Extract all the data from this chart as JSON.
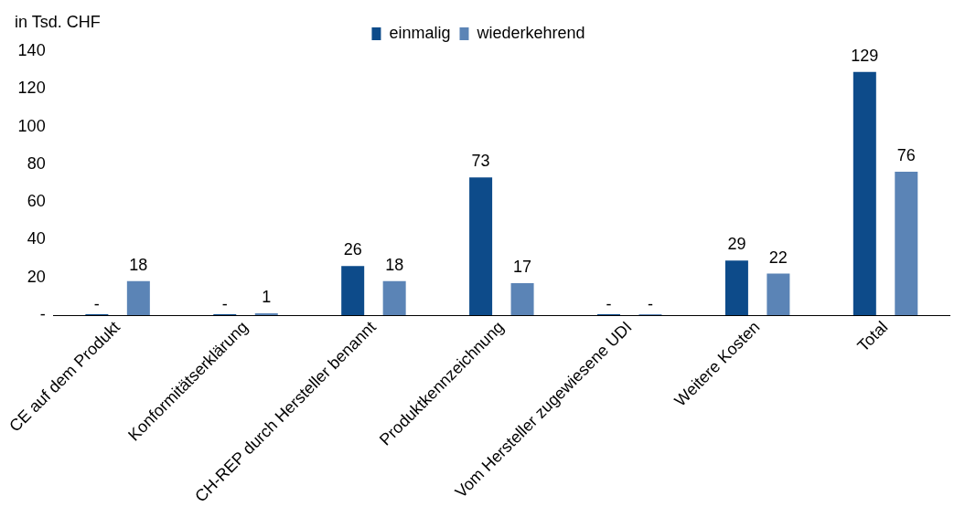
{
  "chart_data": {
    "type": "bar",
    "ylabel": "in Tsd. CHF",
    "categories": [
      "CE auf dem Produkt",
      "Konformitätserklärung",
      "CH-REP durch Hersteller benannt",
      "Produktkennzeichnung",
      "Vom Hersteller zugewiesene UDI",
      "Weitere Kosten",
      "Total"
    ],
    "series": [
      {
        "name": "einmalig",
        "color": "#0d4b8a",
        "values": [
          0,
          0,
          26,
          73,
          0,
          29,
          129
        ],
        "value_labels": [
          "-",
          "-",
          "26",
          "73",
          "-",
          "29",
          "129"
        ]
      },
      {
        "name": "wiederkehrend",
        "color": "#5b84b6",
        "values": [
          18,
          1,
          18,
          17,
          0,
          22,
          76
        ],
        "value_labels": [
          "18",
          "1",
          "18",
          "17",
          "-",
          "22",
          "76"
        ]
      }
    ],
    "ylim": [
      0,
      140
    ],
    "yticks": [
      {
        "value": 0,
        "label": "-"
      },
      20,
      40,
      60,
      80,
      100,
      120,
      140
    ],
    "grid": false,
    "legend": "top"
  }
}
